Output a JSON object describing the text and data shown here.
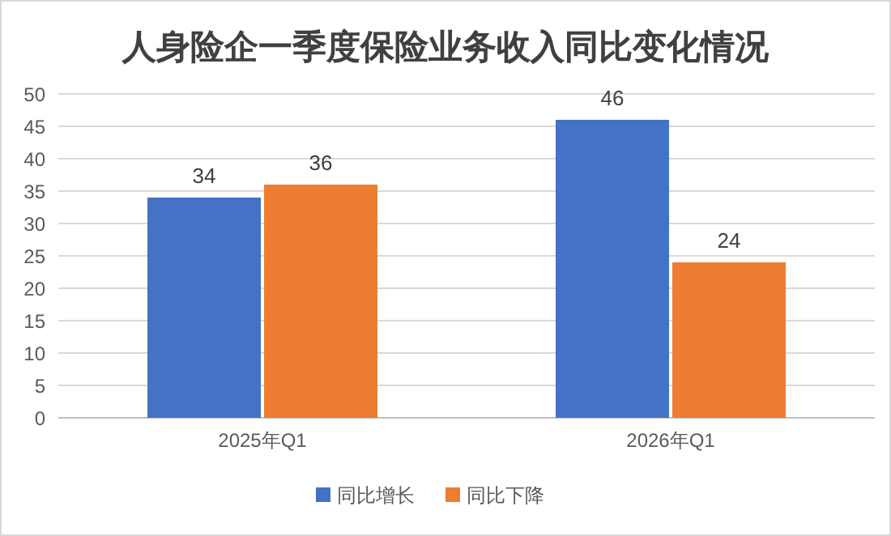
{
  "chart_data": {
    "type": "bar",
    "title": "人身险企一季度保险业务收入同比变化情况",
    "categories": [
      "2025年Q1",
      "2026年Q1"
    ],
    "series": [
      {
        "name": "同比增长",
        "color": "#4472c4",
        "values": [
          34,
          46
        ]
      },
      {
        "name": "同比下降",
        "color": "#ed7d31",
        "values": [
          36,
          24
        ]
      }
    ],
    "ylim": [
      0,
      50
    ],
    "yticks": [
      0,
      5,
      10,
      15,
      20,
      25,
      30,
      35,
      40,
      45,
      50
    ],
    "grid": "y",
    "legend": "bottom",
    "data_labels": true
  }
}
